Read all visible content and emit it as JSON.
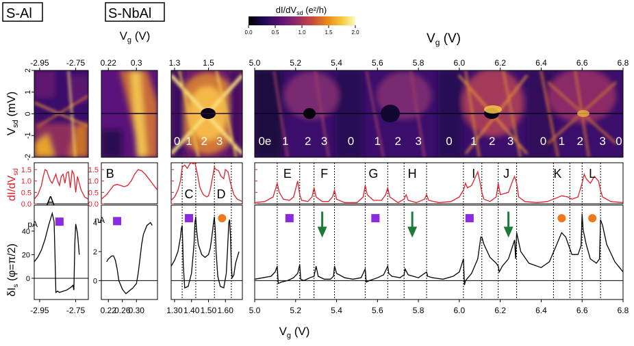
{
  "labels": {
    "s_al": "S-Al",
    "s_nbal": "S-NbAl",
    "colorbar_title": "dI/dV",
    "colorbar_sub": "sd",
    "colorbar_unit": " (e²/h)",
    "vg_top_small": "V",
    "vg_sub": "g",
    "vg_unit": " (V)",
    "vsd_label": "V",
    "vsd_sub": "sd",
    "vsd_unit": " (mV)",
    "didv_label": "dI/dV",
    "didv_sub": "sd",
    "dis_label": "δI",
    "dis_sub": "s",
    "dis_unit": " (φ=π/2)",
    "vg_bottom": "V",
    "pa_unit": "pA",
    "na_unit": "nA"
  },
  "colors": {
    "didv_trace": "#e0202a",
    "dis_trace": "#000000",
    "square": "#8a2be2",
    "circle": "#f07818",
    "arrow": "#1e7a3a",
    "cmap": [
      "#000000",
      "#200a52",
      "#5a1276",
      "#922a6a",
      "#c84a3a",
      "#ea8a1a",
      "#f6cc3e",
      "#fbfcc2"
    ]
  },
  "chart_data": {
    "type": "composite",
    "colorbar": {
      "range": [
        0.0,
        2.0
      ],
      "ticks": [
        "0.0",
        "0.5",
        "1.0",
        "1.5",
        "2.0"
      ]
    },
    "panels": [
      {
        "id": "p1",
        "group": "S-Al",
        "xlim": [
          -2.98,
          -2.68
        ],
        "x_ticks_top": [
          "-2.95",
          "-2.75"
        ],
        "x_ticks_bottom": [
          "-2.95",
          "-2.75"
        ]
      },
      {
        "id": "p2",
        "group": "S-NbAl",
        "xlim": [
          0.2,
          0.36
        ],
        "x_ticks_top": [
          "0.22",
          "0.3"
        ],
        "x_ticks_bottom": [
          "0.22",
          "0.26",
          "0.30"
        ]
      },
      {
        "id": "p3",
        "group": "S-NbAl",
        "xlim": [
          1.28,
          1.7
        ],
        "x_ticks_top": [
          "1.3",
          "1.5"
        ],
        "x_ticks_bottom": [
          "1.30",
          "1.40",
          "1.50",
          "1.60"
        ]
      },
      {
        "id": "p4",
        "group": "S-NbAl",
        "xlim": [
          5.0,
          6.8
        ],
        "x_ticks_top": [
          "5.0",
          "5.2",
          "5.4",
          "5.6",
          "5.8",
          "6.0",
          "6.2",
          "6.4",
          "6.6",
          "6.8"
        ],
        "x_ticks_bottom": [
          "5.0",
          "5.2",
          "5.4",
          "5.6",
          "5.8",
          "6.0",
          "6.2",
          "6.4",
          "6.6",
          "6.8"
        ]
      }
    ],
    "vsd_axis": {
      "range": [
        -2,
        2
      ],
      "ticks": [
        "2",
        "1",
        "0",
        "-1",
        "-2"
      ]
    },
    "didv_axis": {
      "range": [
        0,
        1.8
      ],
      "ticks": [
        "1.5",
        "1.0",
        "0.5",
        "0.0"
      ]
    },
    "dis_axis_p1": {
      "range": [
        -18,
        62
      ],
      "ticks": [
        "40",
        "20",
        "0"
      ]
    },
    "dis_axis_p2": {
      "range": [
        -1.3,
        5.2
      ],
      "ticks": [
        "4",
        "2",
        "0"
      ]
    },
    "charge_states": [
      {
        "panel": "p3",
        "labels": [
          {
            "x": 1.315,
            "t": "0"
          },
          {
            "x": 1.385,
            "t": "1"
          },
          {
            "x": 1.475,
            "t": "2"
          },
          {
            "x": 1.565,
            "t": "3"
          }
        ]
      },
      {
        "panel": "p4",
        "labels": [
          {
            "x": 5.05,
            "t": "0e"
          },
          {
            "x": 5.15,
            "t": "1"
          },
          {
            "x": 5.26,
            "t": "2"
          },
          {
            "x": 5.34,
            "t": "3"
          },
          {
            "x": 5.47,
            "t": "0"
          },
          {
            "x": 5.6,
            "t": "1"
          },
          {
            "x": 5.7,
            "t": "2"
          },
          {
            "x": 5.8,
            "t": "3"
          },
          {
            "x": 5.95,
            "t": "0"
          },
          {
            "x": 6.07,
            "t": "1"
          },
          {
            "x": 6.16,
            "t": "2"
          },
          {
            "x": 6.25,
            "t": "3"
          },
          {
            "x": 6.41,
            "t": "0"
          },
          {
            "x": 6.5,
            "t": "1"
          },
          {
            "x": 6.59,
            "t": "2"
          },
          {
            "x": 6.7,
            "t": "3"
          },
          {
            "x": 6.78,
            "t": "0"
          }
        ]
      }
    ],
    "region_labels": [
      {
        "panel": "p1",
        "x": -2.89,
        "t": "A"
      },
      {
        "panel": "p2",
        "x": 0.225,
        "t": "B"
      },
      {
        "panel": "p3",
        "x": 1.385,
        "t": "C"
      },
      {
        "panel": "p3",
        "x": 1.575,
        "t": "D"
      },
      {
        "panel": "p4",
        "x": 5.16,
        "t": "E"
      },
      {
        "panel": "p4",
        "x": 5.34,
        "t": "F"
      },
      {
        "panel": "p4",
        "x": 5.58,
        "t": "G"
      },
      {
        "panel": "p4",
        "x": 5.77,
        "t": "H"
      },
      {
        "panel": "p4",
        "x": 6.07,
        "t": "I"
      },
      {
        "panel": "p4",
        "x": 6.23,
        "t": "J"
      },
      {
        "panel": "p4",
        "x": 6.48,
        "t": "K"
      },
      {
        "panel": "p4",
        "x": 6.65,
        "t": "L"
      }
    ],
    "dashed_lines": [
      {
        "panel": "p3",
        "xs": [
          1.345,
          1.425,
          1.535,
          1.635
        ]
      },
      {
        "panel": "p4",
        "xs": [
          5.11,
          5.22,
          5.29,
          5.39,
          5.54,
          5.65,
          5.73,
          5.84,
          6.02,
          6.11,
          6.19,
          6.28,
          6.46,
          6.54,
          6.6,
          6.69
        ]
      }
    ],
    "markers": [
      {
        "panel": "p1",
        "type": "square",
        "x": -2.84,
        "v": 48
      },
      {
        "panel": "p2",
        "type": "square",
        "x": 0.245,
        "v": 4.1
      },
      {
        "panel": "p3",
        "type": "square",
        "x": 1.385,
        "v": 4.3
      },
      {
        "panel": "p3",
        "type": "circle",
        "x": 1.58,
        "v": 4.3
      },
      {
        "panel": "p4",
        "type": "square",
        "x": 5.17,
        "v": 4.3
      },
      {
        "panel": "p4",
        "type": "square",
        "x": 5.59,
        "v": 4.3
      },
      {
        "panel": "p4",
        "type": "square",
        "x": 6.05,
        "v": 4.3
      },
      {
        "panel": "p4",
        "type": "circle",
        "x": 6.5,
        "v": 4.3
      },
      {
        "panel": "p4",
        "type": "circle",
        "x": 6.65,
        "v": 4.3
      },
      {
        "panel": "p4",
        "type": "arrow",
        "x": 5.33,
        "v": 4.0
      },
      {
        "panel": "p4",
        "type": "arrow",
        "x": 5.77,
        "v": 4.0
      },
      {
        "panel": "p4",
        "type": "arrow",
        "x": 6.24,
        "v": 4.0
      }
    ],
    "didv_series": [
      {
        "panel": "p1",
        "x": [
          -2.98,
          -2.96,
          -2.94,
          -2.93,
          -2.92,
          -2.91,
          -2.9,
          -2.89,
          -2.88,
          -2.87,
          -2.86,
          -2.85,
          -2.84,
          -2.83,
          -2.82,
          -2.81,
          -2.8,
          -2.79,
          -2.78,
          -2.77,
          -2.76,
          -2.75,
          -2.74,
          -2.73,
          -2.72,
          -2.7,
          -2.68
        ],
        "y": [
          0.2,
          0.4,
          0.8,
          1.2,
          1.5,
          1.45,
          1.2,
          1.0,
          0.9,
          1.1,
          1.3,
          1.0,
          0.8,
          1.2,
          1.3,
          0.9,
          1.35,
          1.4,
          0.7,
          1.45,
          1.3,
          0.5,
          1.2,
          0.9,
          0.6,
          0.3,
          0.2
        ]
      },
      {
        "panel": "p2",
        "x": [
          0.2,
          0.215,
          0.225,
          0.235,
          0.245,
          0.255,
          0.265,
          0.275,
          0.285,
          0.295,
          0.305,
          0.315,
          0.325,
          0.335,
          0.345,
          0.355,
          0.36
        ],
        "y": [
          0.2,
          0.4,
          0.6,
          0.8,
          0.85,
          0.8,
          0.75,
          0.8,
          1.0,
          1.3,
          1.5,
          1.45,
          1.3,
          1.1,
          0.9,
          0.7,
          0.6
        ]
      },
      {
        "panel": "p3",
        "x": [
          1.28,
          1.3,
          1.32,
          1.335,
          1.345,
          1.36,
          1.375,
          1.39,
          1.4,
          1.41,
          1.42,
          1.435,
          1.45,
          1.47,
          1.49,
          1.5,
          1.51,
          1.525,
          1.535,
          1.545,
          1.56,
          1.575,
          1.59,
          1.6,
          1.615,
          1.63,
          1.65,
          1.67,
          1.7
        ],
        "y": [
          0.15,
          0.3,
          0.6,
          1.0,
          1.6,
          1.7,
          1.55,
          1.75,
          1.8,
          1.75,
          1.8,
          1.3,
          0.7,
          0.4,
          0.3,
          0.35,
          0.6,
          1.2,
          1.6,
          1.5,
          1.45,
          1.2,
          1.1,
          1.5,
          1.4,
          0.9,
          0.4,
          0.2,
          0.1
        ]
      },
      {
        "panel": "p4",
        "x": [
          5.0,
          5.05,
          5.09,
          5.11,
          5.12,
          5.14,
          5.17,
          5.19,
          5.21,
          5.22,
          5.23,
          5.26,
          5.28,
          5.29,
          5.3,
          5.33,
          5.36,
          5.38,
          5.39,
          5.4,
          5.44,
          5.5,
          5.53,
          5.54,
          5.55,
          5.58,
          5.62,
          5.64,
          5.65,
          5.66,
          5.7,
          5.73,
          5.74,
          5.75,
          5.79,
          5.83,
          5.84,
          5.85,
          5.9,
          5.96,
          6.0,
          6.02,
          6.03,
          6.04,
          6.06,
          6.08,
          6.09,
          6.1,
          6.11,
          6.12,
          6.15,
          6.18,
          6.19,
          6.2,
          6.24,
          6.26,
          6.27,
          6.28,
          6.29,
          6.32,
          6.38,
          6.43,
          6.46,
          6.5,
          6.53,
          6.55,
          6.58,
          6.6,
          6.61,
          6.62,
          6.64,
          6.66,
          6.68,
          6.69,
          6.7,
          6.74,
          6.8
        ],
        "y": [
          0.05,
          0.1,
          0.3,
          0.9,
          0.5,
          0.2,
          0.15,
          0.3,
          1.0,
          0.4,
          0.15,
          0.1,
          0.3,
          0.7,
          0.3,
          0.1,
          0.1,
          0.3,
          0.6,
          0.2,
          0.05,
          0.05,
          0.3,
          0.8,
          0.4,
          0.15,
          0.15,
          0.4,
          0.7,
          0.3,
          0.05,
          0.2,
          0.4,
          0.15,
          0.05,
          0.2,
          0.4,
          0.15,
          0.05,
          0.1,
          0.3,
          0.6,
          0.9,
          0.7,
          0.8,
          1.2,
          1.4,
          1.0,
          0.5,
          0.2,
          0.1,
          0.3,
          0.9,
          0.4,
          0.5,
          1.0,
          1.2,
          0.9,
          0.3,
          0.1,
          0.05,
          0.1,
          0.2,
          0.35,
          0.3,
          0.2,
          0.3,
          0.9,
          1.3,
          1.1,
          0.9,
          1.2,
          1.0,
          0.6,
          0.3,
          0.1,
          0.05
        ]
      }
    ],
    "dis_series": [
      {
        "panel": "p1",
        "x": [
          -2.98,
          -2.96,
          -2.94,
          -2.92,
          -2.9,
          -2.88,
          -2.87,
          -2.865,
          -2.86,
          -2.85,
          -2.84,
          -2.82,
          -2.8,
          -2.78,
          -2.765,
          -2.76,
          -2.755,
          -2.75,
          -2.74,
          -2.73
        ],
        "y": [
          14,
          18,
          24,
          33,
          45,
          55,
          48,
          20,
          -12,
          -11,
          -12,
          -11,
          -10,
          -8,
          -6,
          -10,
          30,
          46,
          38,
          20
        ]
      },
      {
        "panel": "p2",
        "x": [
          0.215,
          0.22,
          0.225,
          0.23,
          0.235,
          0.24,
          0.245,
          0.25,
          0.26,
          0.27,
          0.28,
          0.29,
          0.3,
          0.305,
          0.31,
          0.315,
          0.32,
          0.33,
          0.34,
          0.345
        ],
        "y": [
          1.3,
          1.5,
          1.6,
          1.7,
          1.7,
          1.4,
          0.8,
          0.0,
          -0.6,
          -0.9,
          -0.7,
          -0.5,
          -0.2,
          0.5,
          1.5,
          2.5,
          3.2,
          3.8,
          4.0,
          3.8
        ]
      },
      {
        "panel": "p3",
        "x": [
          1.28,
          1.3,
          1.32,
          1.335,
          1.34,
          1.345,
          1.352,
          1.36,
          1.38,
          1.4,
          1.415,
          1.42,
          1.425,
          1.43,
          1.44,
          1.46,
          1.48,
          1.5,
          1.51,
          1.52,
          1.53,
          1.535,
          1.54,
          1.545,
          1.555,
          1.57,
          1.59,
          1.605,
          1.612,
          1.62,
          1.625,
          1.63,
          1.635,
          1.64,
          1.65,
          1.66,
          1.68
        ],
        "y": [
          1.0,
          1.4,
          2.0,
          3.0,
          3.6,
          3.8,
          1.0,
          -0.5,
          -0.4,
          0.5,
          2.5,
          4.0,
          4.4,
          3.5,
          2.5,
          1.8,
          1.6,
          1.8,
          2.2,
          3.0,
          4.0,
          4.4,
          3.5,
          2.0,
          0.3,
          -0.4,
          -0.5,
          0.5,
          2.0,
          4.0,
          4.2,
          3.0,
          1.0,
          0.2,
          0.4,
          1.2,
          2.0
        ]
      },
      {
        "panel": "p4",
        "x": [
          5.0,
          5.04,
          5.08,
          5.1,
          5.11,
          5.115,
          5.13,
          5.16,
          5.19,
          5.21,
          5.22,
          5.225,
          5.24,
          5.27,
          5.29,
          5.3,
          5.31,
          5.34,
          5.37,
          5.385,
          5.39,
          5.4,
          5.44,
          5.48,
          5.52,
          5.54,
          5.545,
          5.56,
          5.6,
          5.63,
          5.65,
          5.655,
          5.67,
          5.71,
          5.73,
          5.735,
          5.75,
          5.8,
          5.83,
          5.84,
          5.845,
          5.87,
          5.92,
          5.97,
          6.0,
          6.02,
          6.025,
          6.03,
          6.06,
          6.09,
          6.105,
          6.11,
          6.12,
          6.15,
          6.18,
          6.19,
          6.195,
          6.21,
          6.24,
          6.27,
          6.275,
          6.28,
          6.3,
          6.34,
          6.4,
          6.44,
          6.47,
          6.5,
          6.52,
          6.55,
          6.58,
          6.595,
          6.6,
          6.605,
          6.62,
          6.64,
          6.67,
          6.685,
          6.69,
          6.7,
          6.72,
          6.76,
          6.8
        ],
        "y": [
          0.1,
          0.2,
          0.3,
          0.6,
          1.0,
          -0.2,
          -0.1,
          0.0,
          0.2,
          0.5,
          1.1,
          0.1,
          0.0,
          0.2,
          0.3,
          1.0,
          0.3,
          0.1,
          0.1,
          0.3,
          1.0,
          0.5,
          0.2,
          0.1,
          0.2,
          0.8,
          -0.1,
          0.0,
          0.2,
          0.4,
          1.0,
          0.5,
          0.3,
          0.2,
          0.4,
          0.8,
          0.4,
          0.2,
          0.5,
          0.6,
          0.3,
          0.2,
          0.1,
          0.3,
          0.6,
          1.5,
          -0.3,
          0.0,
          0.5,
          1.5,
          3.0,
          3.0,
          2.5,
          1.6,
          1.2,
          1.0,
          0.6,
          1.0,
          1.5,
          2.8,
          1.5,
          3.3,
          2.0,
          1.2,
          0.9,
          1.3,
          2.3,
          3.3,
          3.0,
          1.8,
          1.8,
          2.4,
          4.6,
          3.5,
          2.5,
          1.5,
          1.2,
          1.5,
          4.2,
          3.8,
          2.5,
          1.3,
          0.6
        ]
      }
    ]
  }
}
